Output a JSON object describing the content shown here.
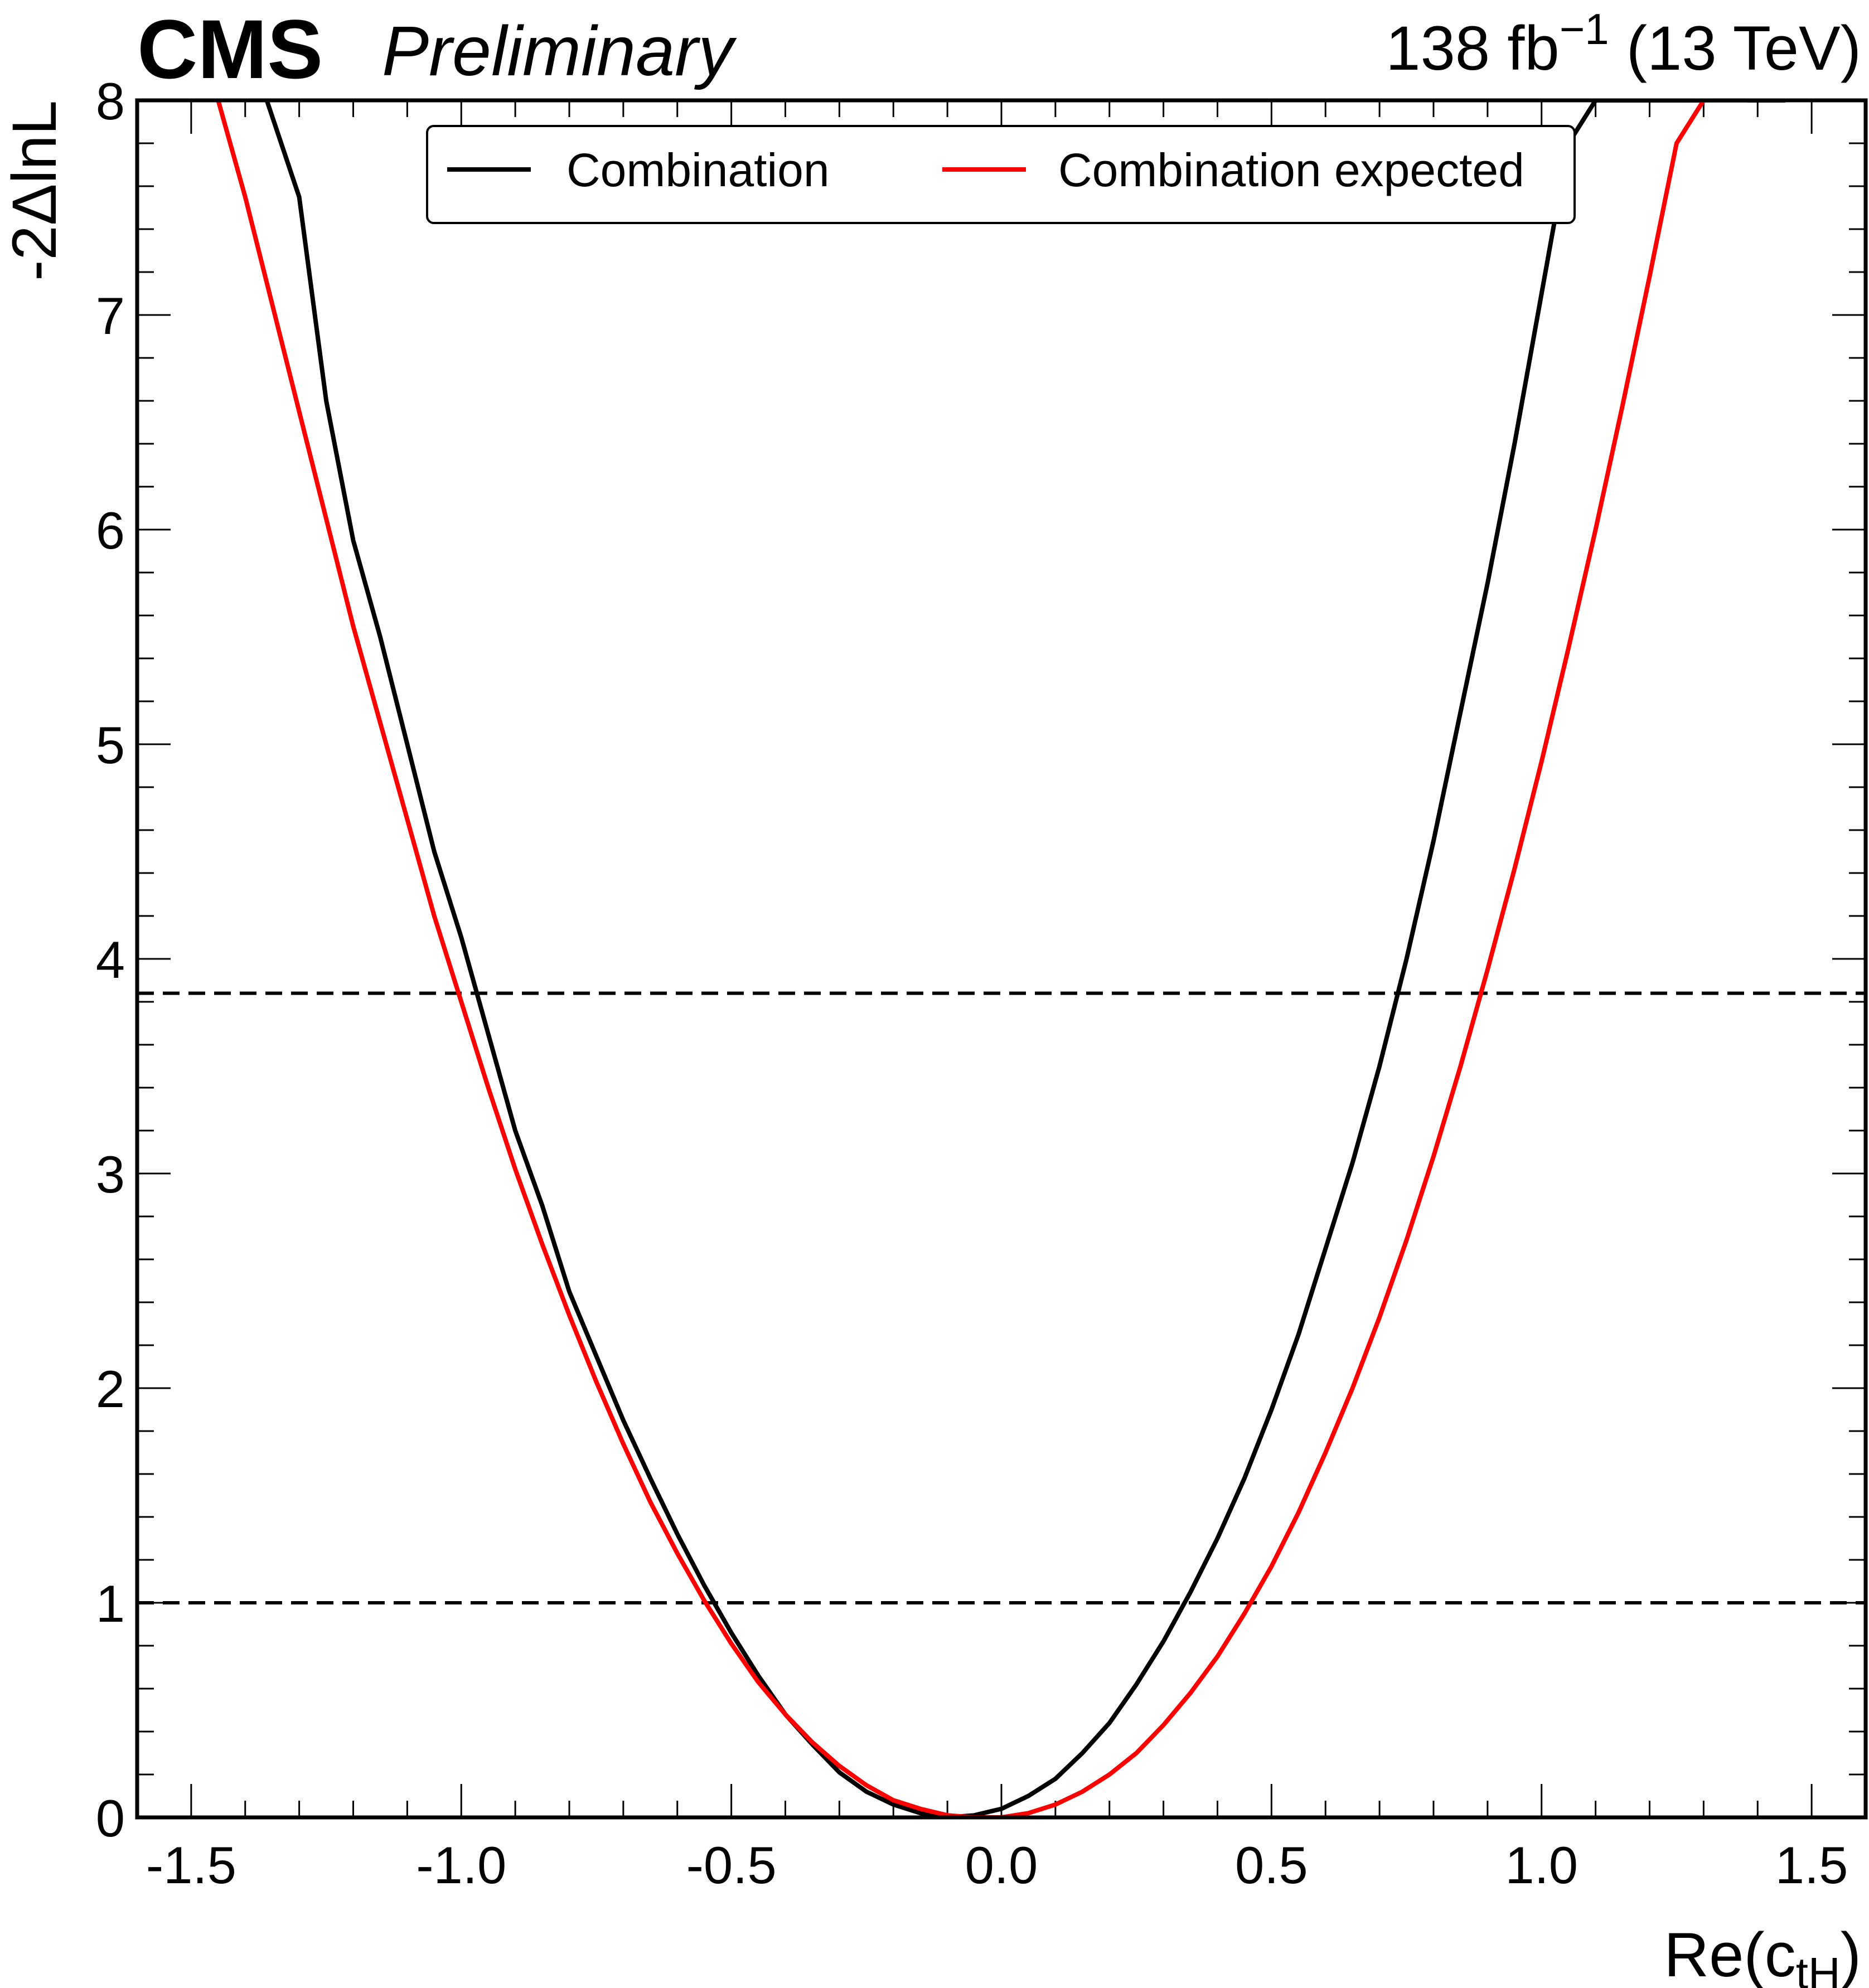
{
  "header": {
    "experiment": "CMS",
    "status": "Preliminary",
    "lumi_prefix": "138 fb",
    "lumi_exponent": "−1",
    "lumi_suffix": " (13 TeV)"
  },
  "chart_data": {
    "type": "line",
    "xlabel_main": "Re(c",
    "xlabel_sub": "tH",
    "xlabel_close": ")",
    "ylabel": "-2ΔlnL",
    "xlim": [
      -1.6,
      1.6
    ],
    "ylim": [
      0,
      8
    ],
    "x_major_ticks": [
      -1.5,
      -1.0,
      -0.5,
      0.0,
      0.5,
      1.0,
      1.5
    ],
    "x_tick_labels": [
      "-1.5",
      "-1.0",
      "-0.5",
      "0.0",
      "0.5",
      "1.0",
      "1.5"
    ],
    "y_major_ticks": [
      0,
      1,
      2,
      3,
      4,
      5,
      6,
      7,
      8
    ],
    "y_tick_labels": [
      "0",
      "1",
      "2",
      "3",
      "4",
      "5",
      "6",
      "7",
      "8"
    ],
    "x_minor_step": 0.1,
    "y_minor_step": 0.2,
    "grid": false,
    "legend_position": "top-center",
    "reference_lines": [
      {
        "y": 1.0,
        "style": "dashed",
        "color": "#000000"
      },
      {
        "y": 3.84,
        "style": "dashed",
        "color": "#000000"
      }
    ],
    "series": [
      {
        "name": "Combination",
        "color": "#000000",
        "x": [
          -1.36,
          -1.3,
          -1.25,
          -1.2,
          -1.15,
          -1.1,
          -1.05,
          -1.0,
          -0.95,
          -0.9,
          -0.85,
          -0.8,
          -0.75,
          -0.7,
          -0.65,
          -0.6,
          -0.55,
          -0.5,
          -0.45,
          -0.4,
          -0.35,
          -0.3,
          -0.25,
          -0.2,
          -0.15,
          -0.1,
          -0.05,
          0.0,
          0.05,
          0.1,
          0.15,
          0.2,
          0.25,
          0.3,
          0.35,
          0.4,
          0.45,
          0.5,
          0.55,
          0.6,
          0.65,
          0.7,
          0.75,
          0.8,
          0.85,
          0.9,
          0.95,
          1.0,
          1.05,
          1.1,
          1.15,
          1.2,
          1.25,
          1.3,
          1.35,
          1.4,
          1.45
        ],
        "y": [
          8.0,
          7.55,
          6.6,
          5.95,
          5.5,
          5.0,
          4.5,
          4.1,
          3.65,
          3.2,
          2.85,
          2.45,
          2.15,
          1.85,
          1.58,
          1.32,
          1.08,
          0.86,
          0.66,
          0.48,
          0.34,
          0.21,
          0.12,
          0.06,
          0.02,
          0.0,
          0.01,
          0.04,
          0.1,
          0.18,
          0.3,
          0.44,
          0.62,
          0.82,
          1.05,
          1.3,
          1.58,
          1.9,
          2.25,
          2.65,
          3.05,
          3.5,
          4.0,
          4.55,
          5.15,
          5.75,
          6.4,
          7.1,
          7.8,
          8.0,
          8.0,
          8.0,
          8.0,
          8.0,
          8.0,
          8.0,
          8.0
        ]
      },
      {
        "name": "Combination expected",
        "color": "#ff0000",
        "x": [
          -1.45,
          -1.4,
          -1.35,
          -1.3,
          -1.25,
          -1.2,
          -1.15,
          -1.1,
          -1.05,
          -1.0,
          -0.95,
          -0.9,
          -0.85,
          -0.8,
          -0.75,
          -0.7,
          -0.65,
          -0.6,
          -0.55,
          -0.5,
          -0.45,
          -0.4,
          -0.35,
          -0.3,
          -0.25,
          -0.2,
          -0.15,
          -0.1,
          -0.05,
          0.0,
          0.05,
          0.1,
          0.15,
          0.2,
          0.25,
          0.3,
          0.35,
          0.4,
          0.45,
          0.5,
          0.55,
          0.6,
          0.65,
          0.7,
          0.75,
          0.8,
          0.85,
          0.9,
          0.95,
          1.0,
          1.05,
          1.1,
          1.15,
          1.2,
          1.25,
          1.3,
          1.35,
          1.38
        ],
        "y": [
          8.0,
          7.55,
          7.05,
          6.55,
          6.05,
          5.55,
          5.1,
          4.65,
          4.2,
          3.8,
          3.4,
          3.02,
          2.67,
          2.34,
          2.03,
          1.74,
          1.47,
          1.23,
          1.01,
          0.81,
          0.63,
          0.48,
          0.35,
          0.24,
          0.15,
          0.08,
          0.04,
          0.01,
          0.0,
          0.0,
          0.02,
          0.06,
          0.12,
          0.2,
          0.3,
          0.43,
          0.58,
          0.75,
          0.95,
          1.17,
          1.42,
          1.7,
          2.0,
          2.33,
          2.69,
          3.08,
          3.5,
          3.95,
          4.42,
          4.92,
          5.45,
          6.0,
          6.58,
          7.18,
          7.8,
          8.0,
          8.0,
          8.0
        ]
      }
    ]
  }
}
